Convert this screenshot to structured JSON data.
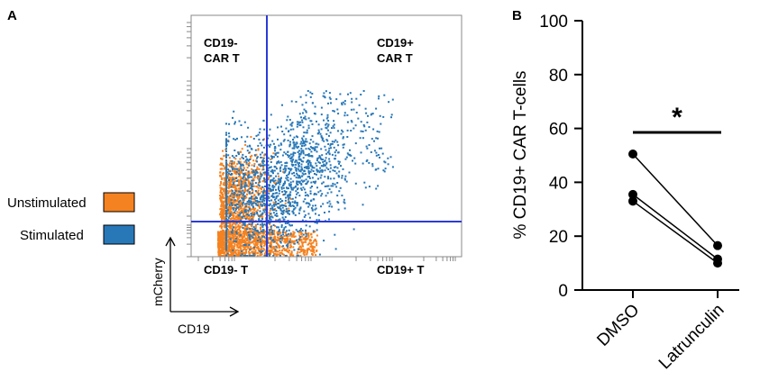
{
  "panel_a": {
    "letter": "A",
    "quadrants": {
      "top_left": [
        "CD19-",
        "CAR T"
      ],
      "top_right": [
        "CD19+",
        "CAR T"
      ],
      "bottom_left": "CD19- T",
      "bottom_right": "CD19+ T"
    },
    "legend": [
      {
        "label": "Unstimulated",
        "color": "#f58220"
      },
      {
        "label": "Stimulated",
        "color": "#2878b8"
      }
    ],
    "gate_color": "#2b3bd6",
    "xlabel": "CD19",
    "ylabel": "mCherry"
  },
  "chart_data": [
    {
      "type": "scatter",
      "title": "",
      "xlabel": "CD19",
      "ylabel": "mCherry",
      "series": [
        {
          "name": "Unstimulated",
          "color": "#f58220"
        },
        {
          "name": "Stimulated",
          "color": "#2878b8"
        }
      ],
      "gates": [
        "vertical CD19 gate",
        "horizontal mCherry gate"
      ]
    },
    {
      "type": "scatter",
      "panel_letter": "B",
      "title": "",
      "ylabel": "% CD19+ CAR T-cells",
      "categories": [
        "DMSO",
        "Latrunculin"
      ],
      "ylim": [
        0,
        100
      ],
      "yticks": [
        "0",
        "20",
        "40",
        "60",
        "80",
        "100"
      ],
      "paired": [
        {
          "DMSO": 50.5,
          "Latrunculin": 16.5
        },
        {
          "DMSO": 35.5,
          "Latrunculin": 11.5
        },
        {
          "DMSO": 33.0,
          "Latrunculin": 10.0
        }
      ],
      "significance": "*"
    }
  ]
}
